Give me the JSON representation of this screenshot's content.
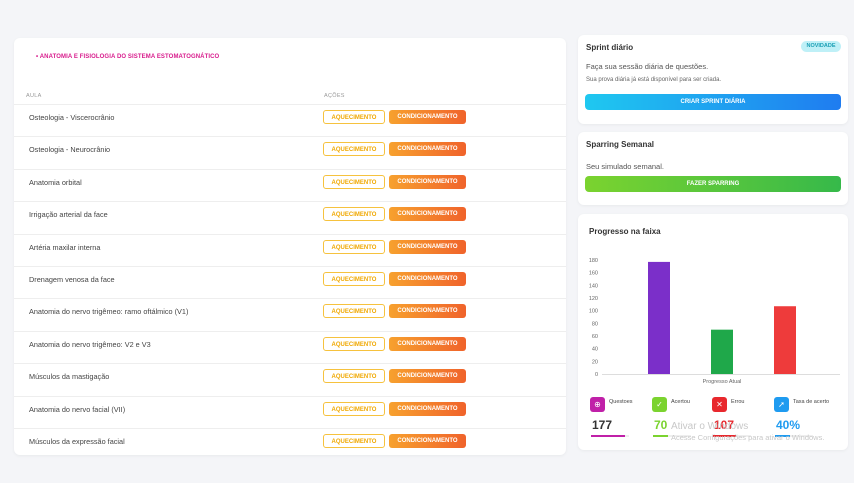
{
  "main": {
    "breadcrumb": "• ANATOMIA E FISIOLOGIA DO SISTEMA ESTOMATOGNÁTICO",
    "col_aula": "AULA",
    "col_acoes": "AÇÕES",
    "btn_aquecimento": "AQUECIMENTO",
    "btn_condicionamento": "CONDICIONAMENTO",
    "rows": [
      "Osteologia - Viscerocrânio",
      "Osteologia - Neurocrânio",
      "Anatomia orbital",
      "Irrigação arterial da face",
      "Artéria maxilar interna",
      "Drenagem venosa da face",
      "Anatomia do nervo trigêmeo: ramo oftálmico (V1)",
      "Anatomia do nervo trigêmeo: V2 e V3",
      "Músculos da mastigação",
      "Anatomia do nervo facial (VII)",
      "Músculos da expressão facial"
    ]
  },
  "sprint": {
    "title": "Sprint diário",
    "badge": "NOVIDADE",
    "subtitle": "Faça sua sessão diária de questões.",
    "note": "Sua prova diária já está disponível para ser criada.",
    "button": "CRIAR SPRINT DIÁRIA"
  },
  "sparring": {
    "title": "Sparring Semanal",
    "subtitle": "Seu simulado semanal.",
    "button": "FAZER SPARRING"
  },
  "progress": {
    "title": "Progresso na faixa",
    "stats": [
      {
        "label": "Questoes",
        "value": "177",
        "color": "#c020a8",
        "icon": "question-icon",
        "glyph": "⊕",
        "fill": 0.9
      },
      {
        "label": "Acertou",
        "value": "70",
        "color": "#7bd32f",
        "icon": "check-icon",
        "glyph": "✓",
        "fill": 0.4
      },
      {
        "label": "Errou",
        "value": "107",
        "color": "#e8282d",
        "icon": "x-icon",
        "glyph": "✕",
        "fill": 0.6
      },
      {
        "label": "Taxa de acerto",
        "value": "40%",
        "color": "#1f9bf0",
        "icon": "rocket-icon",
        "glyph": "➚",
        "fill": 0.4
      }
    ]
  },
  "chart_data": {
    "type": "bar",
    "categories": [
      "Progresso Atual"
    ],
    "series": [
      {
        "name": "Questoes",
        "values": [
          177
        ],
        "color": "#7b2fc9"
      },
      {
        "name": "Acertou",
        "values": [
          70
        ],
        "color": "#1fa84a"
      },
      {
        "name": "Errou",
        "values": [
          107
        ],
        "color": "#ee3b3b"
      }
    ],
    "xlabel": "Progresso Atual",
    "yticks": [
      0,
      20,
      40,
      60,
      80,
      100,
      120,
      140,
      160,
      180
    ],
    "ylim": [
      0,
      180
    ],
    "grid": false
  },
  "watermark": {
    "line1": "Ativar o Windows",
    "line2": "Acesse Configurações para ativar o Windows."
  }
}
